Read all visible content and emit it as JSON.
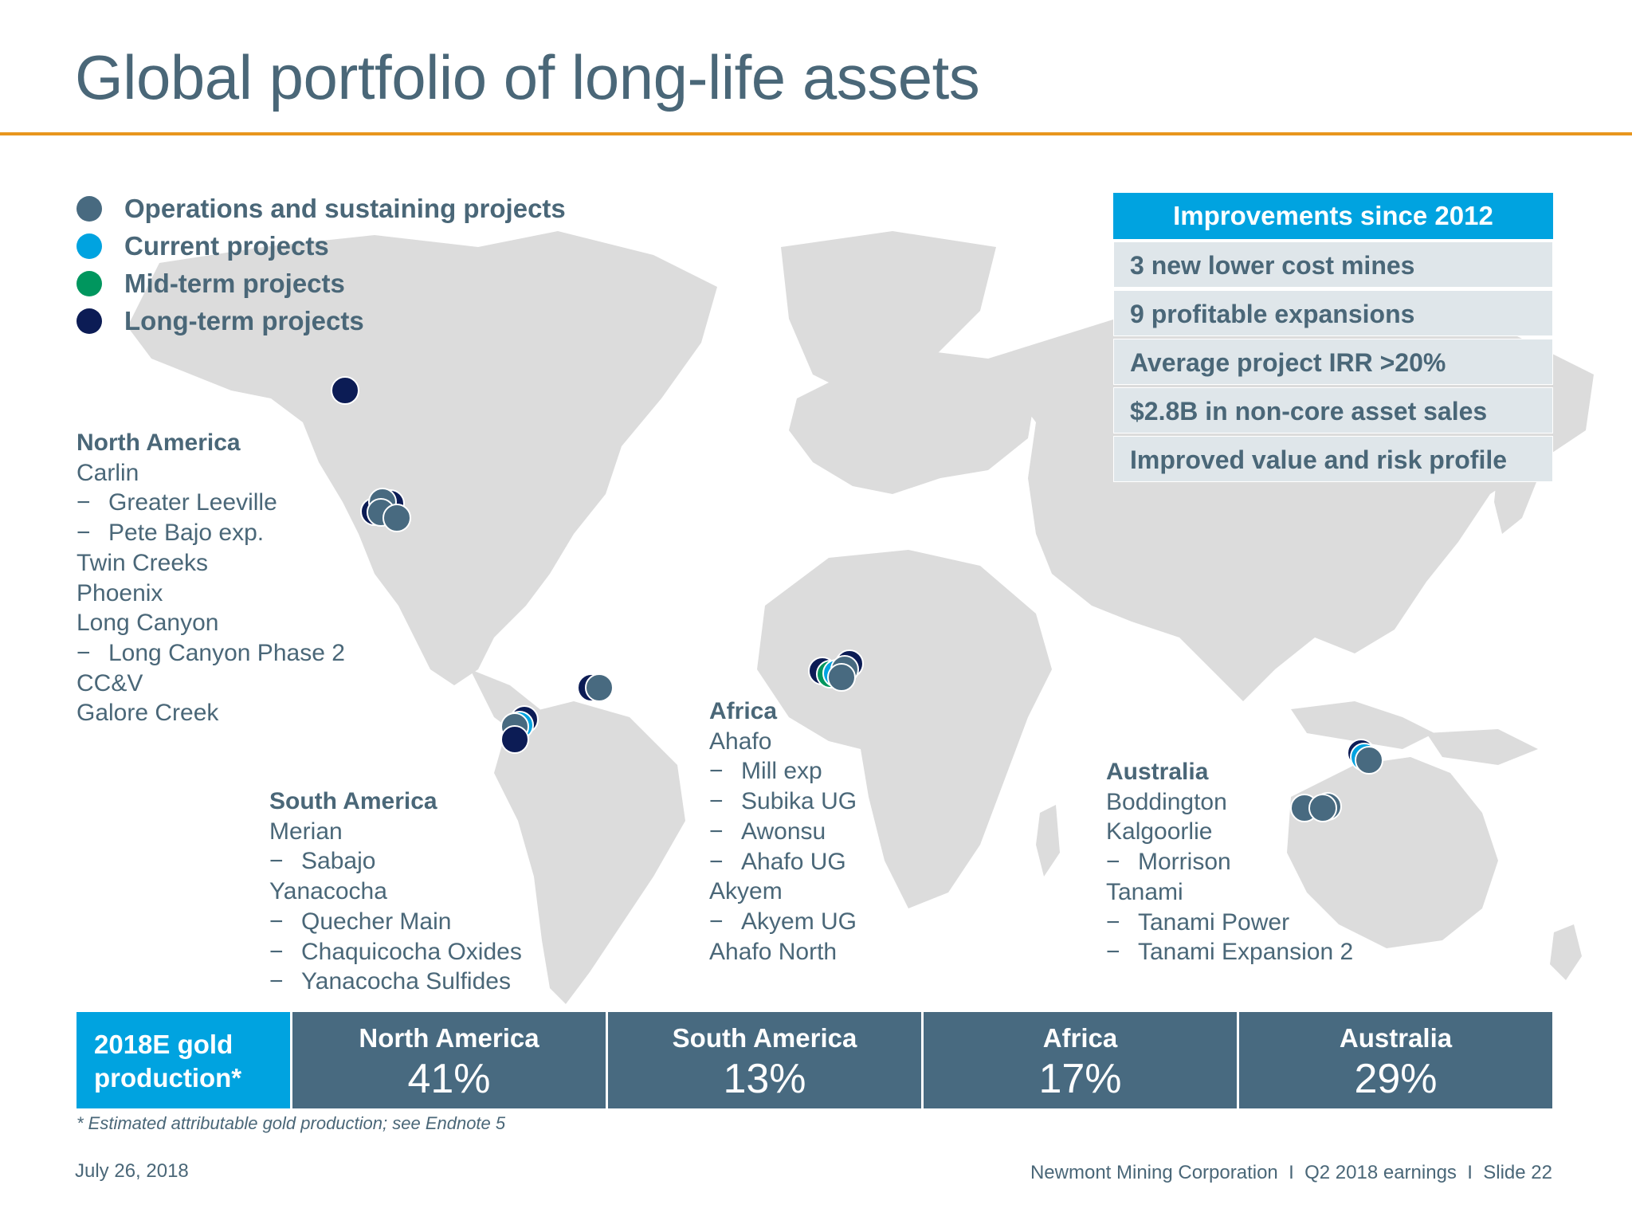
{
  "title": "Global portfolio of long-life assets",
  "colors": {
    "operations": "#486a80",
    "current": "#00a3e0",
    "midterm": "#00965e",
    "longterm": "#0c1c55",
    "accent_rule": "#e8961e"
  },
  "legend": [
    {
      "label": "Operations and sustaining projects",
      "color": "#486a80"
    },
    {
      "label": "Current projects",
      "color": "#00a3e0"
    },
    {
      "label": "Mid-term projects",
      "color": "#00965e"
    },
    {
      "label": "Long-term projects",
      "color": "#0c1c55"
    }
  ],
  "regions": {
    "north_america": {
      "title": "North America",
      "items": [
        {
          "text": "Carlin",
          "sub": false
        },
        {
          "text": "Greater Leeville",
          "sub": true
        },
        {
          "text": "Pete Bajo exp.",
          "sub": true
        },
        {
          "text": "Twin Creeks",
          "sub": false
        },
        {
          "text": "Phoenix",
          "sub": false
        },
        {
          "text": "Long Canyon",
          "sub": false
        },
        {
          "text": "Long Canyon Phase 2",
          "sub": true
        },
        {
          "text": "CC&V",
          "sub": false
        },
        {
          "text": "Galore Creek",
          "sub": false
        }
      ]
    },
    "south_america": {
      "title": "South America",
      "items": [
        {
          "text": "Merian",
          "sub": false
        },
        {
          "text": "Sabajo",
          "sub": true
        },
        {
          "text": "Yanacocha",
          "sub": false
        },
        {
          "text": "Quecher Main",
          "sub": true
        },
        {
          "text": "Chaquicocha Oxides",
          "sub": true
        },
        {
          "text": "Yanacocha Sulfides",
          "sub": true
        }
      ]
    },
    "africa": {
      "title": "Africa",
      "items": [
        {
          "text": "Ahafo",
          "sub": false
        },
        {
          "text": "Mill exp",
          "sub": true
        },
        {
          "text": "Subika UG",
          "sub": true
        },
        {
          "text": "Awonsu",
          "sub": true
        },
        {
          "text": "Ahafo UG",
          "sub": true
        },
        {
          "text": "Akyem",
          "sub": false
        },
        {
          "text": "Akyem UG",
          "sub": true
        },
        {
          "text": "Ahafo North",
          "sub": false
        }
      ]
    },
    "australia": {
      "title": "Australia",
      "items": [
        {
          "text": "Boddington",
          "sub": false
        },
        {
          "text": "Kalgoorlie",
          "sub": false
        },
        {
          "text": "Morrison",
          "sub": true
        },
        {
          "text": "Tanami",
          "sub": false
        },
        {
          "text": "Tanami Power",
          "sub": true
        },
        {
          "text": "Tanami Expansion 2",
          "sub": true
        }
      ]
    }
  },
  "improvements": {
    "header": "Improvements since 2012",
    "rows": [
      "3 new lower cost mines",
      "9 profitable expansions",
      "Average project IRR >20%",
      "$2.8B in non-core asset sales",
      "Improved value and risk profile"
    ]
  },
  "production": {
    "label": "2018E gold production*",
    "cells": [
      {
        "region": "North America",
        "pct": "41%"
      },
      {
        "region": "South America",
        "pct": "13%"
      },
      {
        "region": "Africa",
        "pct": "17%"
      },
      {
        "region": "Australia",
        "pct": "29%"
      }
    ]
  },
  "footnote": "* Estimated attributable gold production; see Endnote 5",
  "footer": {
    "date": "July 26, 2018",
    "right": "Newmont Mining Corporation  I  Q2 2018 earnings  I  Slide 22"
  }
}
